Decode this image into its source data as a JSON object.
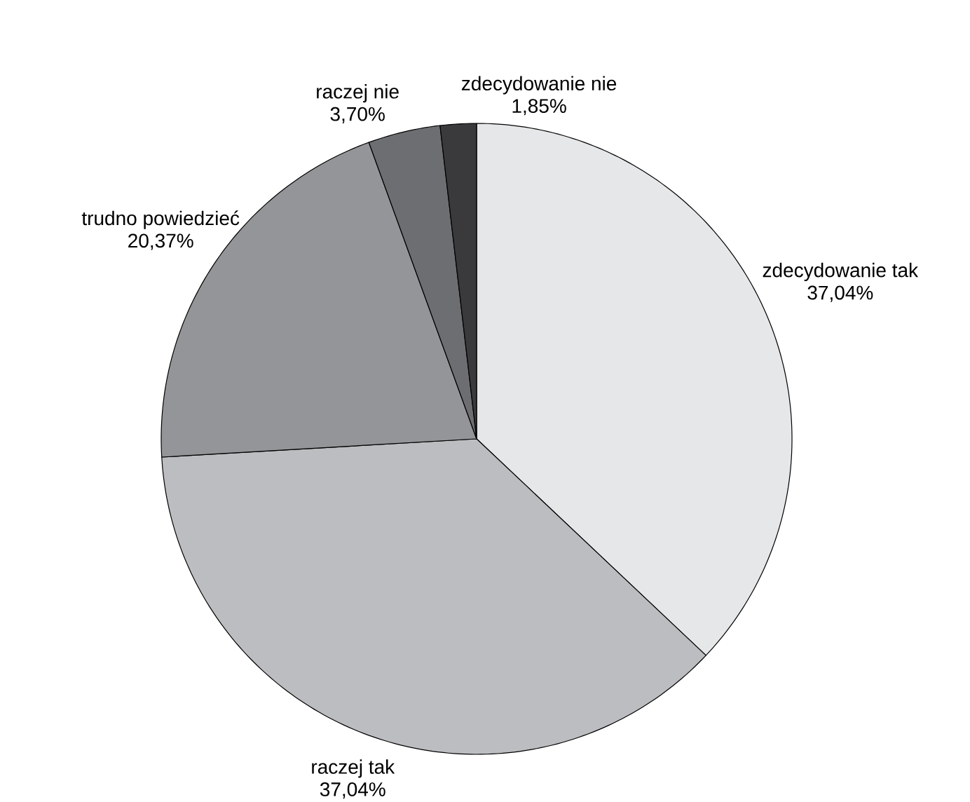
{
  "chart_data": {
    "type": "pie",
    "categories": [
      "zdecydowanie tak",
      "raczej tak",
      "trudno powiedzieć",
      "raczej nie",
      "zdecydowanie nie"
    ],
    "values": [
      37.04,
      37.04,
      20.37,
      3.7,
      1.85
    ],
    "value_labels": [
      "37,04%",
      "37,04%",
      "20,37%",
      "3,70%",
      "1,85%"
    ],
    "colors": [
      "#e6e7e8",
      "#bcbdc0",
      "#949598",
      "#6d6e71",
      "#3a3a3c"
    ]
  }
}
